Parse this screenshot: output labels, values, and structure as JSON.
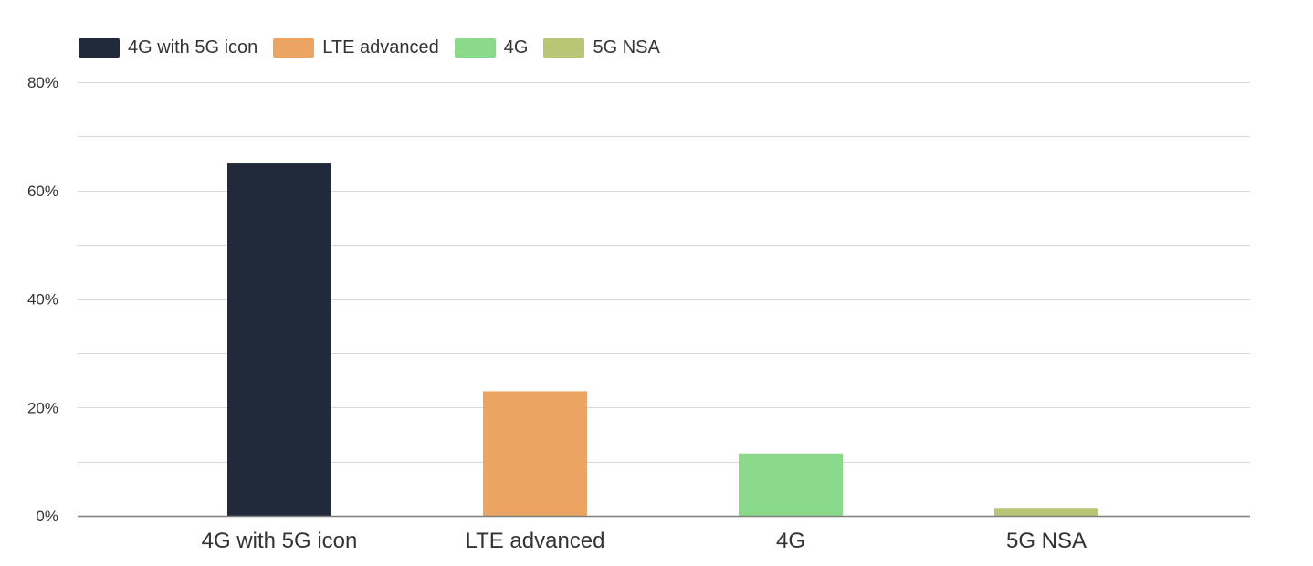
{
  "chart_data": {
    "type": "bar",
    "categories": [
      "4G with 5G icon",
      "LTE advanced",
      "4G",
      "5G NSA"
    ],
    "values": [
      65,
      23,
      11.5,
      1.3
    ],
    "colors": [
      "#212a3a",
      "#eba461",
      "#8bda8b",
      "#b9c675"
    ],
    "legend": [
      "4G with 5G icon",
      "LTE advanced",
      "4G",
      "5G NSA"
    ],
    "legend_position": "top-left",
    "ylim": [
      0,
      80
    ],
    "yticks": [
      {
        "value": 0,
        "label": "0%"
      },
      {
        "value": 20,
        "label": "20%"
      },
      {
        "value": 40,
        "label": "40%"
      },
      {
        "value": 60,
        "label": "60%"
      },
      {
        "value": 80,
        "label": "80%"
      }
    ],
    "gridlines": [
      0,
      10,
      20,
      30,
      40,
      50,
      60,
      70,
      80
    ],
    "grid": true
  }
}
